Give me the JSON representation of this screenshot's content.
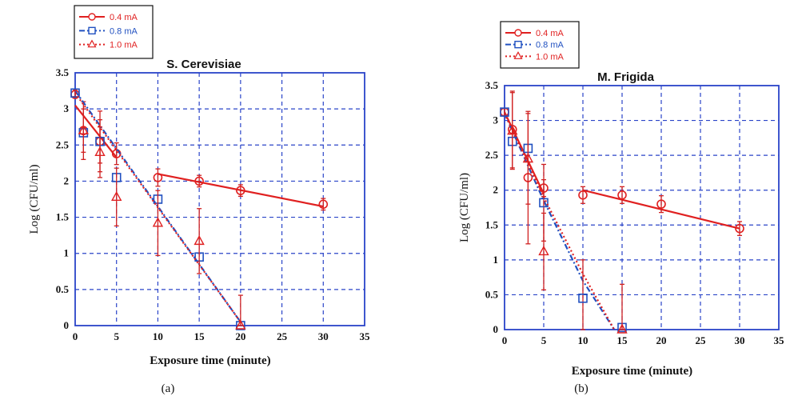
{
  "chart_data": [
    {
      "type": "line",
      "title": "S. Cerevisiae",
      "xlabel": "Exposure time (minute)",
      "ylabel": "Log (CFU/ml)",
      "caption": "(a)",
      "xlim": [
        0,
        35
      ],
      "ylim": [
        0,
        3.5
      ],
      "xticks": [
        "0",
        "5",
        "10",
        "15",
        "20",
        "25",
        "30",
        "35"
      ],
      "yticks": [
        "0",
        "0.5",
        "1",
        "1.5",
        "2",
        "2.5",
        "3",
        "3.5"
      ],
      "grid": true,
      "legend_position": "above-left",
      "series": [
        {
          "name": "0.4 mA",
          "color": "#e02020",
          "marker": "circle",
          "points": [
            {
              "x": 0,
              "y": 3.2,
              "err": 0.05
            },
            {
              "x": 1,
              "y": 2.7,
              "err": 0.4
            },
            {
              "x": 3,
              "y": 2.55,
              "err": 0.3
            },
            {
              "x": 5,
              "y": 2.38,
              "err": 0.15
            },
            {
              "x": 10,
              "y": 2.05,
              "err": 0.12
            },
            {
              "x": 15,
              "y": 2.0,
              "err": 0.08
            },
            {
              "x": 20,
              "y": 1.87,
              "err": 0.08
            },
            {
              "x": 30,
              "y": 1.68,
              "err": 0.08
            }
          ],
          "fits": [
            {
              "style": "solid",
              "points": [
                [
                  0,
                  3.05
                ],
                [
                  5,
                  2.33
                ]
              ]
            },
            {
              "style": "solid",
              "points": [
                [
                  10,
                  2.1
                ],
                [
                  30,
                  1.65
                ]
              ]
            }
          ]
        },
        {
          "name": "0.8 mA",
          "color": "#2050c0",
          "marker": "square",
          "points": [
            {
              "x": 0,
              "y": 3.22,
              "err": 0.05
            },
            {
              "x": 1,
              "y": 2.67,
              "err": 0
            },
            {
              "x": 3,
              "y": 2.55,
              "err": 0.42
            },
            {
              "x": 5,
              "y": 2.05,
              "err": 0
            },
            {
              "x": 10,
              "y": 1.75,
              "err": 0
            },
            {
              "x": 15,
              "y": 0.95,
              "err": 0
            },
            {
              "x": 20,
              "y": 0.0,
              "err": 0
            }
          ],
          "fits": [
            {
              "style": "dashdot",
              "points": [
                [
                  0,
                  3.25
                ],
                [
                  20,
                  0.05
                ]
              ]
            }
          ]
        },
        {
          "name": "1.0 mA",
          "color": "#e02020",
          "marker": "triangle",
          "points": [
            {
              "x": 1,
              "y": 2.7,
              "err": 0.3
            },
            {
              "x": 3,
              "y": 2.4,
              "err": 0.35
            },
            {
              "x": 5,
              "y": 1.78,
              "err": 0.4
            },
            {
              "x": 10,
              "y": 1.42,
              "err": 0.45
            },
            {
              "x": 15,
              "y": 1.17,
              "err": 0.45
            },
            {
              "x": 20,
              "y": 0.0,
              "err": 0.42
            }
          ],
          "fits": [
            {
              "style": "dotted",
              "points": [
                [
                  0,
                  3.22
                ],
                [
                  20,
                  0.05
                ]
              ]
            }
          ]
        }
      ]
    },
    {
      "type": "line",
      "title": "M. Frigida",
      "xlabel": "Exposure time (minute)",
      "ylabel": "Log (CFU/ml)",
      "caption": "(b)",
      "xlim": [
        0,
        35
      ],
      "ylim": [
        0,
        3.5
      ],
      "xticks": [
        "0",
        "5",
        "10",
        "15",
        "20",
        "25",
        "30",
        "35"
      ],
      "yticks": [
        "0",
        "0.5",
        "1",
        "1.5",
        "2",
        "2.5",
        "3",
        "3.5"
      ],
      "grid": true,
      "legend_position": "above-left",
      "series": [
        {
          "name": "0.4 mA",
          "color": "#e02020",
          "marker": "circle",
          "points": [
            {
              "x": 0,
              "y": 3.12,
              "err": 0.05
            },
            {
              "x": 1,
              "y": 2.87,
              "err": 0.55
            },
            {
              "x": 3,
              "y": 2.18,
              "err": 0.95
            },
            {
              "x": 5,
              "y": 2.03,
              "err": 0.12
            },
            {
              "x": 10,
              "y": 1.93,
              "err": 0.12
            },
            {
              "x": 15,
              "y": 1.93,
              "err": 0.12
            },
            {
              "x": 20,
              "y": 1.8,
              "err": 0.12
            },
            {
              "x": 30,
              "y": 1.45,
              "err": 0.1
            }
          ],
          "fits": [
            {
              "style": "solid",
              "points": [
                [
                  0,
                  3.12
                ],
                [
                  5,
                  1.95
                ]
              ]
            },
            {
              "style": "solid",
              "points": [
                [
                  10,
                  2.0
                ],
                [
                  30,
                  1.45
                ]
              ]
            }
          ]
        },
        {
          "name": "0.8 mA",
          "color": "#2050c0",
          "marker": "square",
          "points": [
            {
              "x": 0,
              "y": 3.12,
              "err": 0.05
            },
            {
              "x": 1,
              "y": 2.7,
              "err": 0
            },
            {
              "x": 3,
              "y": 2.6,
              "err": 0
            },
            {
              "x": 5,
              "y": 1.82,
              "err": 0.55
            },
            {
              "x": 10,
              "y": 0.45,
              "err": 0.55
            },
            {
              "x": 15,
              "y": 0.03,
              "err": 0
            }
          ],
          "fits": [
            {
              "style": "dashdot",
              "points": [
                [
                  0,
                  3.1
                ],
                [
                  5,
                  1.85
                ],
                [
                  10,
                  0.7
                ],
                [
                  14,
                  0.0
                ]
              ]
            }
          ]
        },
        {
          "name": "1.0 mA",
          "color": "#e02020",
          "marker": "triangle",
          "points": [
            {
              "x": 1,
              "y": 2.85,
              "err": 0.55
            },
            {
              "x": 3,
              "y": 2.45,
              "err": 0.65
            },
            {
              "x": 5,
              "y": 1.12,
              "err": 0.55
            },
            {
              "x": 15,
              "y": 0.0,
              "err": 0.65
            }
          ],
          "fits": [
            {
              "style": "dotted",
              "points": [
                [
                  0,
                  3.1
                ],
                [
                  5,
                  1.9
                ],
                [
                  10,
                  0.8
                ],
                [
                  14,
                  0.0
                ]
              ]
            }
          ]
        }
      ]
    }
  ]
}
